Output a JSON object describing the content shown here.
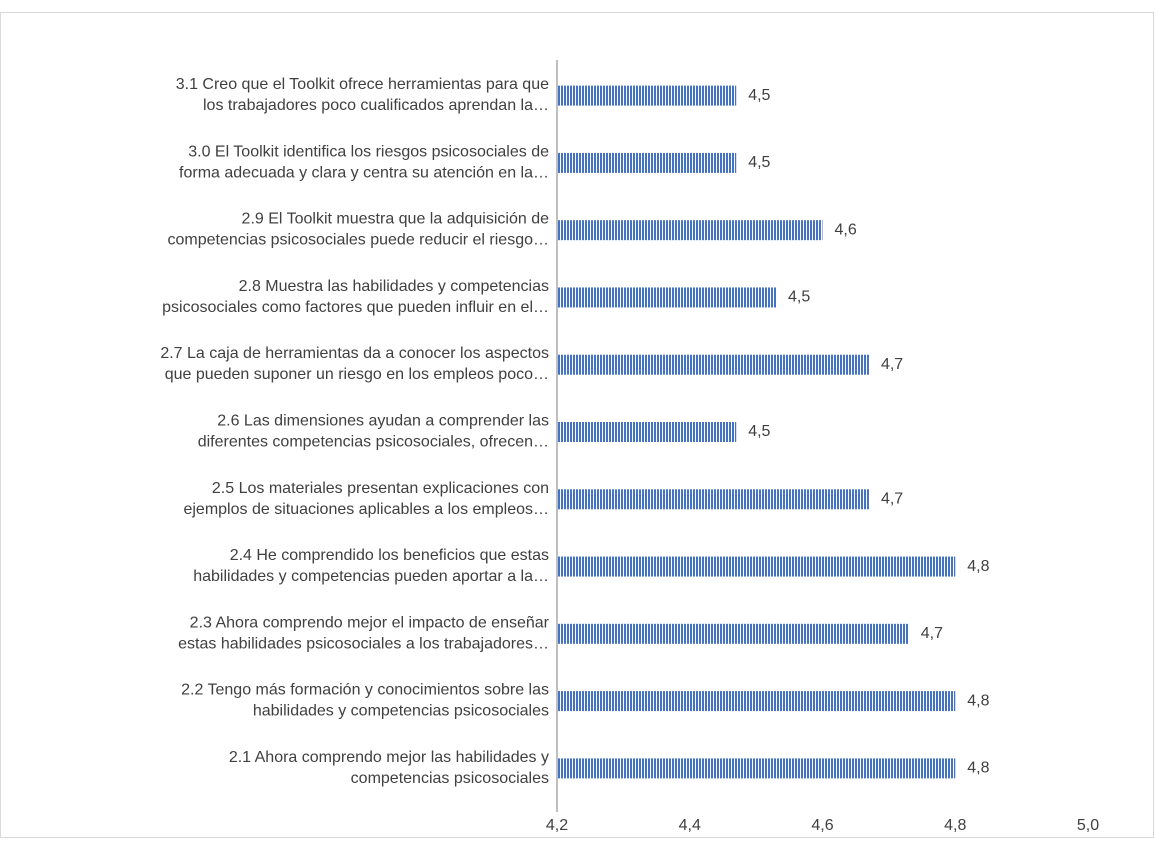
{
  "chart_data": {
    "type": "hbar",
    "categories": [
      "3.1 Creo que el Toolkit ofrece herramientas para que\nlos trabajadores poco cualificados aprendan la…",
      "3.0 El Toolkit identifica los riesgos psicosociales de\nforma adecuada y clara y centra su atención en la…",
      "2.9 El Toolkit muestra que la adquisición de\ncompetencias psicosociales puede reducir el riesgo…",
      "2.8 Muestra las habilidades y competencias\npsicosociales como factores que pueden influir en el…",
      "2.7 La caja de herramientas da a conocer los aspectos\nque pueden suponer un riesgo en los empleos poco…",
      "2.6 Las dimensiones ayudan a comprender las\ndiferentes competencias psicosociales, ofrecen…",
      "2.5 Los materiales presentan explicaciones con\nejemplos de situaciones aplicables a los empleos…",
      "2.4 He comprendido los beneficios que estas\nhabilidades y competencias pueden aportar a la…",
      "2.3 Ahora comprendo mejor el impacto de enseñar\nestas habilidades psicosociales a los trabajadores…",
      "2.2 Tengo más formación y conocimientos sobre las\nhabilidades y competencias psicosociales",
      "2.1 Ahora comprendo mejor las habilidades y\ncompetencias psicosociales"
    ],
    "values": [
      4.47,
      4.47,
      4.6,
      4.53,
      4.67,
      4.47,
      4.67,
      4.8,
      4.73,
      4.8,
      4.8
    ],
    "value_labels": [
      "4,5",
      "4,5",
      "4,6",
      "4,5",
      "4,7",
      "4,5",
      "4,7",
      "4,8",
      "4,7",
      "4,8",
      "4,8"
    ],
    "color": "#4472c4",
    "xlim": [
      4.2,
      5.0
    ],
    "xticks": [
      {
        "value": 4.2,
        "label": "4,2"
      },
      {
        "value": 4.4,
        "label": "4,4"
      },
      {
        "value": 4.6,
        "label": "4,6"
      },
      {
        "value": 4.8,
        "label": "4,8"
      },
      {
        "value": 5.0,
        "label": "5,0"
      }
    ]
  }
}
